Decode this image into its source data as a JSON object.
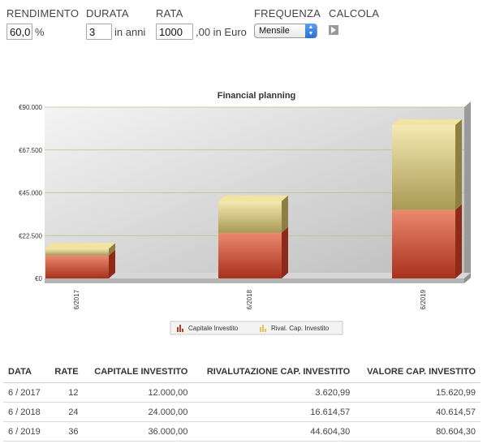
{
  "form": {
    "rendimento": {
      "label": "RENDIMENTO",
      "value": "60,0",
      "suffix": "%"
    },
    "durata": {
      "label": "DURATA",
      "value": "3",
      "suffix": "in anni"
    },
    "rata": {
      "label": "RATA",
      "value": "1000",
      "suffix": ",00 in Euro"
    },
    "frequenza": {
      "label": "FREQUENZA",
      "selected": "Mensile"
    },
    "calcola": {
      "label": "CALCOLA"
    }
  },
  "chart_data": {
    "type": "bar",
    "stacked": true,
    "title": "Financial planning",
    "categories": [
      "6/2017",
      "6/2018",
      "6/2019"
    ],
    "series": [
      {
        "name": "Capitale Investito",
        "values": [
          12000,
          24000,
          36000
        ],
        "color": "#d9603f"
      },
      {
        "name": "Rival. Cap. Investito",
        "values": [
          3620.99,
          16614.57,
          44604.3
        ],
        "color": "#d8c27a"
      }
    ],
    "yticks": [
      "€0",
      "€22.500",
      "€45.000",
      "€67.500",
      "€90.000"
    ],
    "ylim": [
      0,
      90000
    ],
    "grid": true,
    "legend": "bottom"
  },
  "table": {
    "headers": [
      "DATA",
      "RATE",
      "CAPITALE INVESTITO",
      "RIVALUTAZIONE CAP. INVESTITO",
      "VALORE CAP. INVESTITO"
    ],
    "rows": [
      [
        "6 / 2017",
        "12",
        "12.000,00",
        "3.620,99",
        "15.620,99"
      ],
      [
        "6 / 2018",
        "24",
        "24.000,00",
        "16.614,57",
        "40.614,57"
      ],
      [
        "6 / 2019",
        "36",
        "36.000,00",
        "44.604,30",
        "80.604,30"
      ]
    ]
  }
}
